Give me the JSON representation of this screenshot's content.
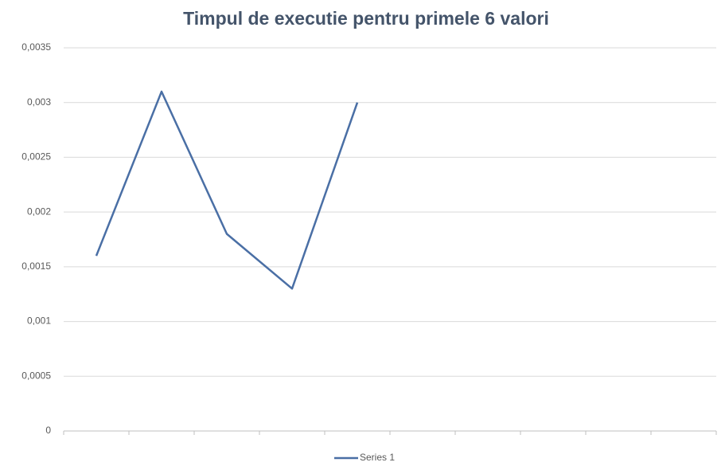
{
  "chart_data": {
    "type": "line",
    "title": "Timpul de executie pentru primele 6 valori",
    "categories": [
      null,
      null,
      null,
      null,
      null,
      null,
      null,
      null,
      null,
      null
    ],
    "series": [
      {
        "name": "Series 1",
        "color": "#4a6fa5",
        "values": [
          0.0016,
          0.0031,
          0.0018,
          0.0013,
          0.003,
          null,
          null,
          null,
          null,
          null
        ]
      }
    ],
    "ylim": [
      0,
      0.0035
    ],
    "yticks": [
      0,
      {
        "value": 0.0005,
        "label": "0,0005"
      },
      {
        "value": 0.001,
        "label": "0,001"
      },
      {
        "value": 0.0015,
        "label": "0,0015"
      },
      {
        "value": 0.002,
        "label": "0,002"
      },
      {
        "value": 0.0025,
        "label": "0,0025"
      },
      {
        "value": 0.003,
        "label": "0,003"
      },
      {
        "value": 0.0035,
        "label": "0,0035"
      }
    ],
    "grid": true,
    "legend": "bottom"
  }
}
